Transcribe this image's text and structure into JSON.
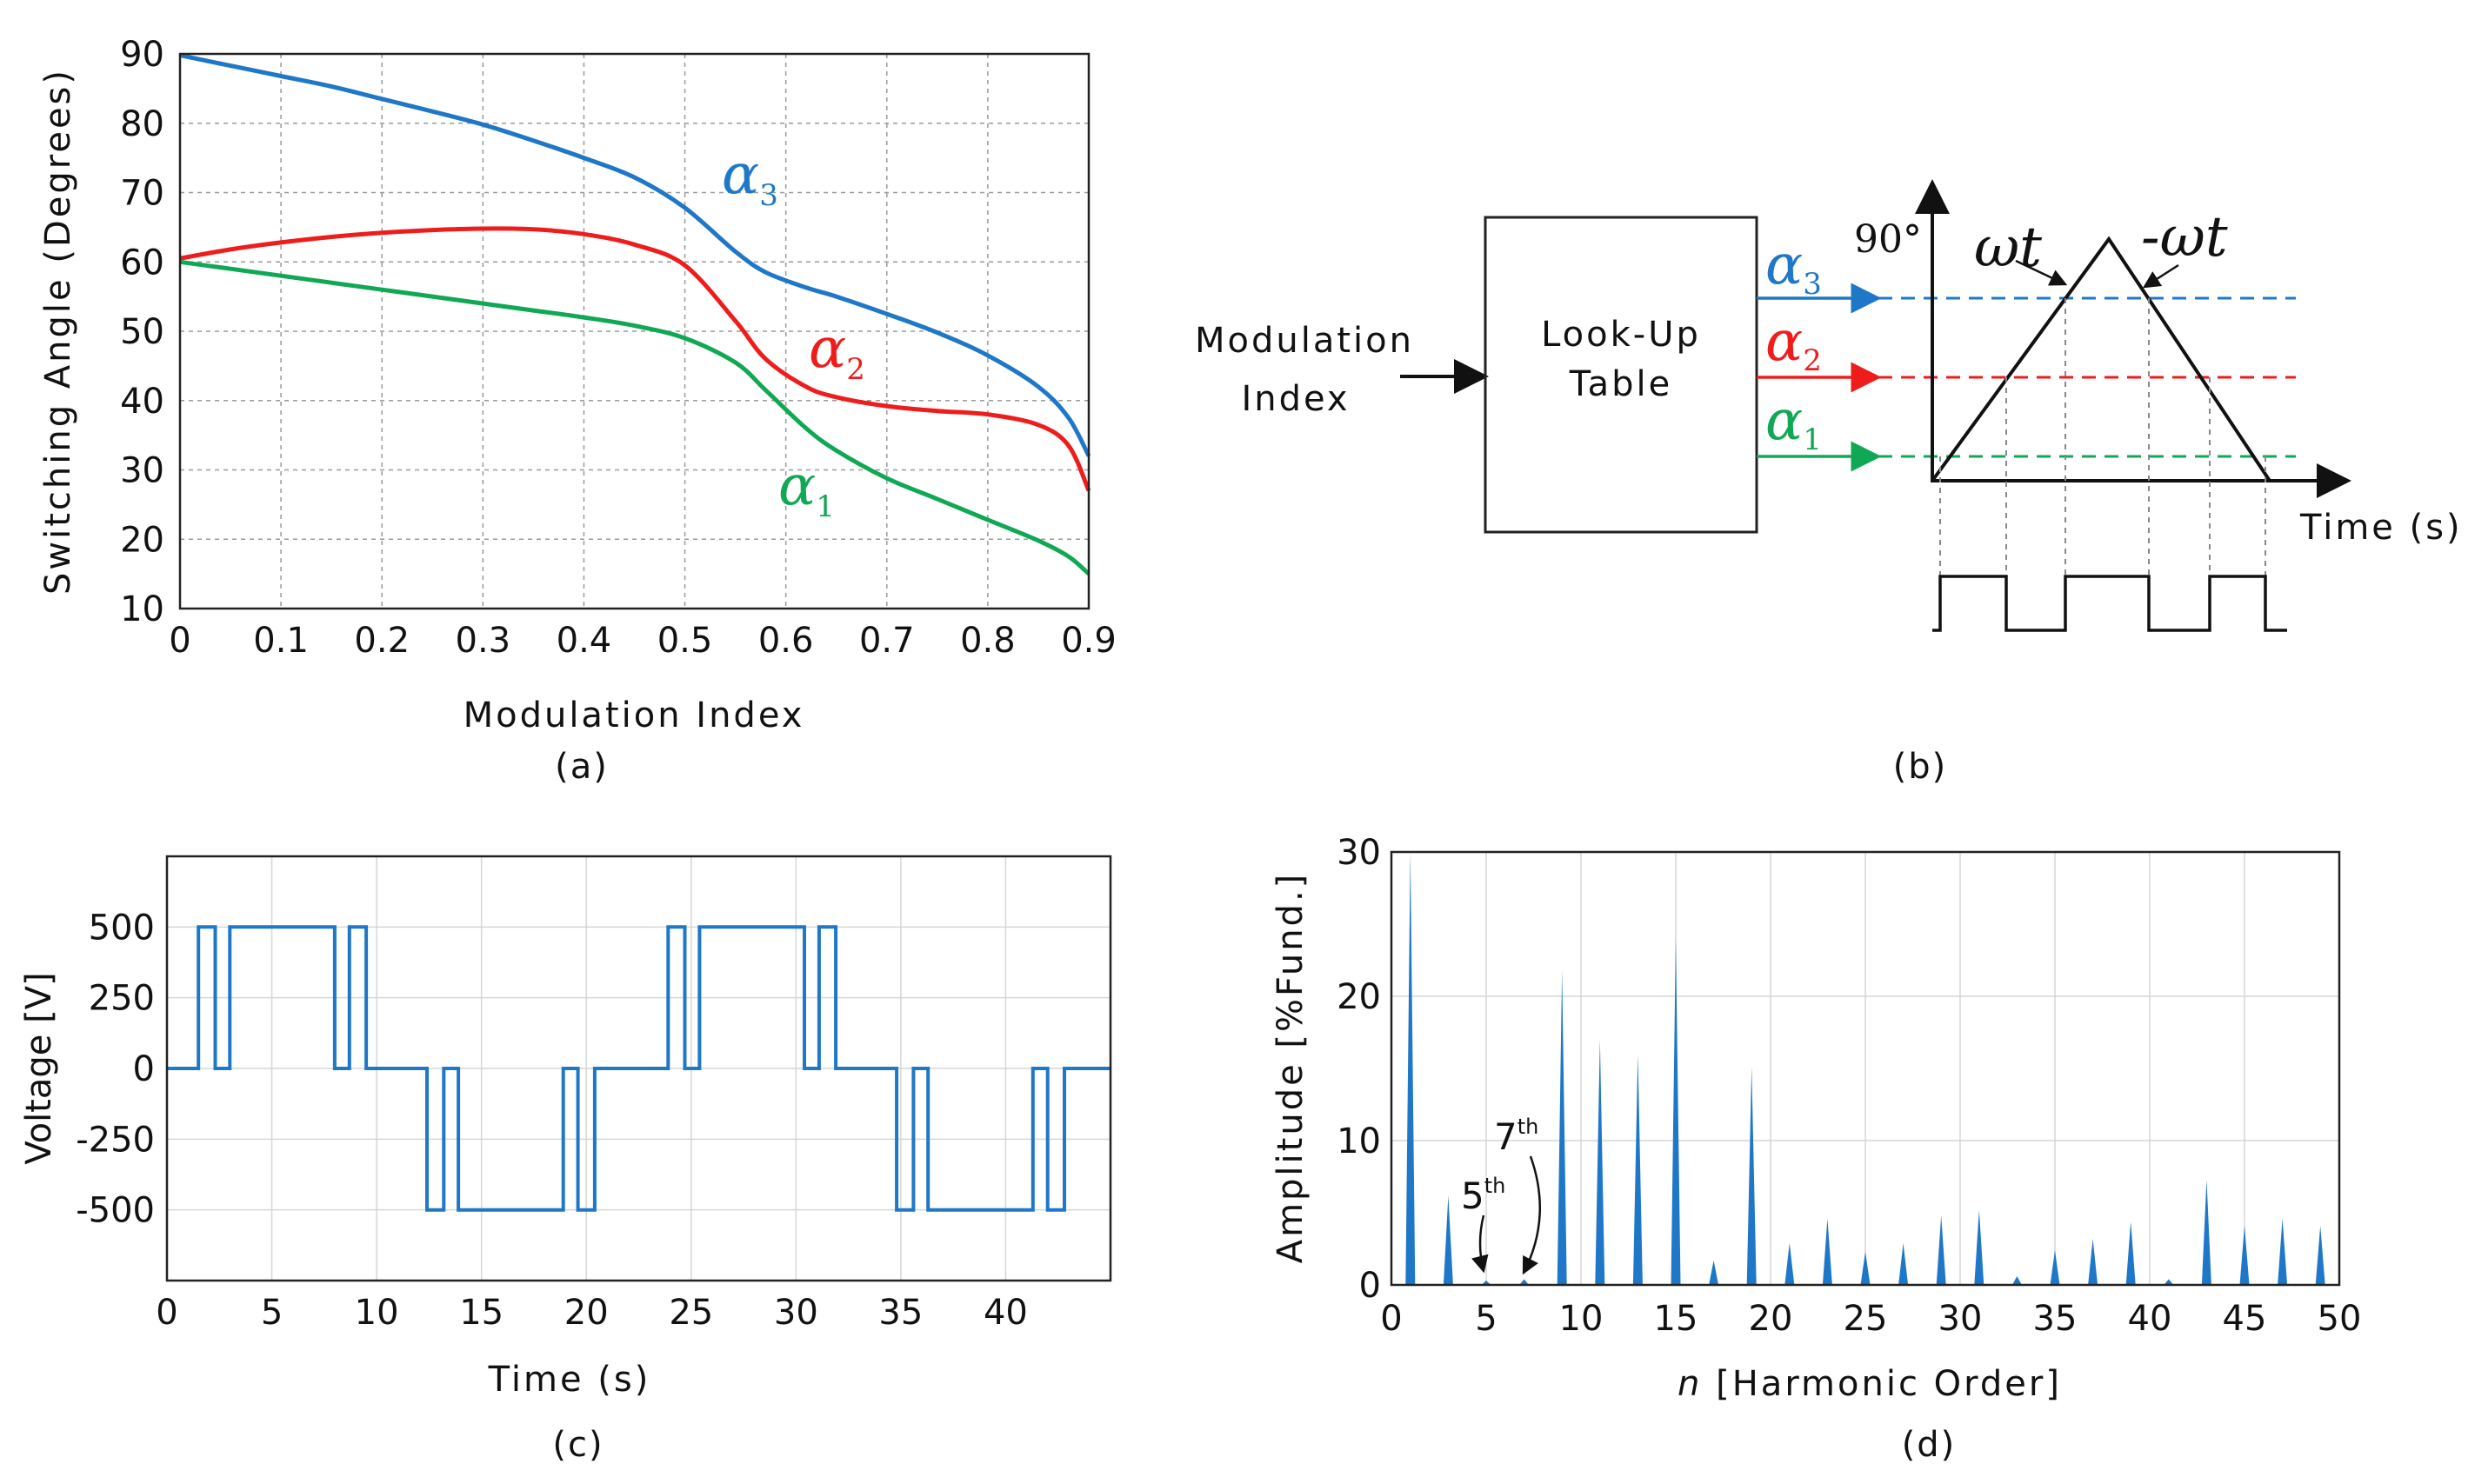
{
  "chart_data": [
    {
      "id": "a",
      "type": "line",
      "caption": "(a)",
      "xlabel": "Modulation Index",
      "ylabel": "Switching Angle (Degrees)",
      "xlim": [
        0,
        0.9
      ],
      "ylim": [
        10,
        90
      ],
      "xticks": [
        "0",
        "0.1",
        "0.2",
        "0.3",
        "0.4",
        "0.5",
        "0.6",
        "0.7",
        "0.8",
        "0.9"
      ],
      "yticks": [
        "10",
        "20",
        "30",
        "40",
        "50",
        "60",
        "70",
        "80",
        "90"
      ],
      "grid": true,
      "series": [
        {
          "name": "α3",
          "label": "α",
          "sub": "3",
          "color": "#1f77c8",
          "x": [
            0,
            0.05,
            0.1,
            0.15,
            0.2,
            0.25,
            0.3,
            0.35,
            0.4,
            0.45,
            0.5,
            0.55,
            0.58,
            0.62,
            0.65,
            0.7,
            0.75,
            0.8,
            0.85,
            0.88,
            0.9
          ],
          "y": [
            89.8,
            88.3,
            86.8,
            85.3,
            83.5,
            81.7,
            79.8,
            77.5,
            75.0,
            72.2,
            67.8,
            61.5,
            58.5,
            56.3,
            55.0,
            52.5,
            49.8,
            46.5,
            42.0,
            37.5,
            32.0
          ]
        },
        {
          "name": "α2",
          "label": "α",
          "sub": "2",
          "color": "#ef1c1c",
          "x": [
            0,
            0.05,
            0.1,
            0.15,
            0.2,
            0.25,
            0.3,
            0.35,
            0.4,
            0.45,
            0.5,
            0.55,
            0.58,
            0.62,
            0.65,
            0.7,
            0.75,
            0.8,
            0.85,
            0.88,
            0.9
          ],
          "y": [
            60.5,
            61.8,
            62.8,
            63.6,
            64.2,
            64.6,
            64.8,
            64.7,
            64.0,
            62.5,
            59.5,
            51.5,
            46.0,
            42.0,
            40.5,
            39.2,
            38.5,
            38.0,
            36.5,
            33.5,
            27.0
          ]
        },
        {
          "name": "α1",
          "label": "α",
          "sub": "1",
          "color": "#10a855",
          "x": [
            0,
            0.05,
            0.1,
            0.15,
            0.2,
            0.25,
            0.3,
            0.35,
            0.4,
            0.45,
            0.5,
            0.55,
            0.58,
            0.62,
            0.65,
            0.7,
            0.75,
            0.8,
            0.85,
            0.88,
            0.9
          ],
          "y": [
            60.0,
            59.0,
            58.0,
            57.0,
            56.0,
            55.0,
            54.0,
            53.0,
            52.0,
            50.8,
            49.0,
            45.5,
            41.5,
            36.0,
            32.8,
            28.8,
            25.8,
            22.8,
            19.8,
            17.5,
            15.0
          ]
        }
      ]
    },
    {
      "id": "b",
      "type": "diagram",
      "caption": "(b)",
      "input_label_1": "Modulation",
      "input_label_2": "Index",
      "box_label_1": "Look-Up",
      "box_label_2": "Table",
      "outputs": [
        {
          "name": "α3",
          "label": "α",
          "sub": "3",
          "color": "#1f77c8"
        },
        {
          "name": "α2",
          "label": "α",
          "sub": "2",
          "color": "#ef1c1c"
        },
        {
          "name": "α1",
          "label": "α",
          "sub": "1",
          "color": "#10a855"
        }
      ],
      "axis_top_label": "90°",
      "rise_label": "ωt",
      "fall_label": "-ωt",
      "xlabel": "Time (s)"
    },
    {
      "id": "c",
      "type": "line",
      "caption": "(c)",
      "xlabel": "Time (s)",
      "ylabel": "Voltage [V]",
      "xlim": [
        0,
        45
      ],
      "ylim": [
        -750,
        750
      ],
      "xticks": [
        "0",
        "5",
        "10",
        "15",
        "20",
        "25",
        "30",
        "35",
        "40"
      ],
      "yticks": [
        "500",
        "250",
        "0",
        "-250",
        "-500"
      ],
      "grid": true,
      "color": "#1f77c8",
      "series": [
        {
          "name": "Voltage",
          "t": [
            0,
            1.5,
            1.5,
            2.3,
            2.3,
            3.0,
            3.0,
            8.0,
            8.0,
            8.7,
            8.7,
            9.5,
            9.5,
            12.4,
            12.4,
            13.2,
            13.2,
            13.9,
            13.9,
            18.9,
            18.9,
            19.6,
            19.6,
            20.4,
            20.4,
            23.9,
            23.9,
            24.7,
            24.7,
            25.4,
            25.4,
            30.4,
            30.4,
            31.1,
            31.1,
            31.9,
            31.9,
            34.8,
            34.8,
            35.6,
            35.6,
            36.3,
            36.3,
            41.3,
            41.3,
            42.0,
            42.0,
            42.8,
            42.8,
            45
          ],
          "v": [
            0,
            0,
            500,
            500,
            0,
            0,
            500,
            500,
            0,
            0,
            500,
            500,
            0,
            0,
            -500,
            -500,
            0,
            0,
            -500,
            -500,
            0,
            0,
            -500,
            -500,
            0,
            0,
            500,
            500,
            0,
            0,
            500,
            500,
            0,
            0,
            500,
            500,
            0,
            0,
            -500,
            -500,
            0,
            0,
            -500,
            -500,
            0,
            0,
            -500,
            -500,
            0,
            0
          ]
        }
      ]
    },
    {
      "id": "d",
      "type": "bar",
      "caption": "(d)",
      "xlabel_italic": "n",
      "xlabel": " [Harmonic Order]",
      "ylabel": "Amplitude [%Fund.]",
      "xlim": [
        0,
        50
      ],
      "ylim": [
        0,
        30
      ],
      "xticks": [
        "0",
        "5",
        "10",
        "15",
        "20",
        "25",
        "30",
        "35",
        "40",
        "45",
        "50"
      ],
      "yticks": [
        "0",
        "10",
        "20",
        "30"
      ],
      "grid": true,
      "color": "#1f77c8",
      "harmonics": [
        1,
        3,
        5,
        7,
        9,
        11,
        13,
        15,
        17,
        19,
        21,
        23,
        25,
        27,
        29,
        31,
        33,
        35,
        37,
        39,
        41,
        43,
        45,
        47,
        49
      ],
      "values": [
        30,
        6.2,
        0.3,
        0.4,
        21.8,
        17.0,
        16.0,
        24.0,
        1.7,
        15.1,
        2.9,
        4.6,
        2.3,
        2.9,
        4.8,
        5.2,
        0.6,
        2.4,
        3.2,
        4.4,
        0.4,
        7.3,
        4.1,
        4.6,
        4.1
      ],
      "annotations": [
        {
          "label": "5",
          "sup": "th",
          "harmonic": 5
        },
        {
          "label": "7",
          "sup": "th",
          "harmonic": 7
        }
      ]
    }
  ]
}
